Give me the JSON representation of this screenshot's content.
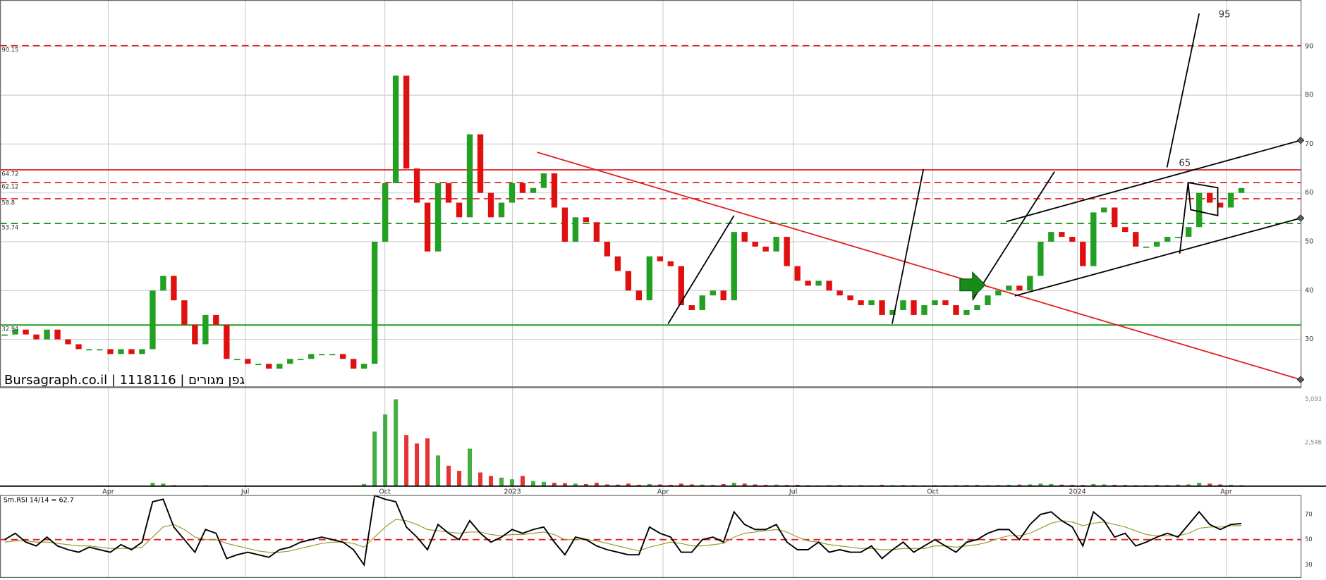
{
  "chart_data": [
    {
      "type": "candlestick",
      "title": "Bursagraph.co.il | 1118116 | גפן מגורים",
      "xlim": [
        0,
        123.04
      ],
      "xticks": [
        {
          "value": 10.24,
          "label": "Apr"
        },
        {
          "value": 23.2,
          "label": "Jul"
        },
        {
          "value": 36.4,
          "label": "Oct"
        },
        {
          "value": 48.48,
          "label": "2023"
        },
        {
          "value": 62.72,
          "label": "Apr"
        },
        {
          "value": 75.04,
          "label": "Jul"
        },
        {
          "value": 88.24,
          "label": "Oct"
        },
        {
          "value": 101.92,
          "label": "2024"
        },
        {
          "value": 116,
          "label": "Apr"
        }
      ],
      "ylim": [
        20.2,
        99.5
      ],
      "yticks": [
        30,
        40,
        50,
        60,
        70,
        80,
        90
      ],
      "grid": true,
      "up_color": "#22a022",
      "down_color": "#e01010",
      "values": [
        31,
        32,
        31,
        30,
        32,
        30,
        29,
        28,
        28,
        28,
        27,
        28,
        27,
        28,
        40,
        43,
        38,
        33,
        29,
        35,
        33,
        26,
        26,
        25,
        25,
        24,
        25,
        26,
        26,
        27,
        27,
        27,
        26,
        24,
        25,
        50,
        62,
        84,
        65,
        58,
        48,
        62,
        58,
        55,
        72,
        60,
        55,
        58,
        62,
        60,
        61,
        64,
        57,
        50,
        55,
        54,
        50,
        47,
        44,
        40,
        38,
        47,
        46,
        45,
        37,
        36,
        39,
        40,
        38,
        52,
        50,
        49,
        48,
        51,
        45,
        42,
        41,
        42,
        40,
        39,
        38,
        37,
        38,
        35,
        36,
        38,
        35,
        37,
        38,
        37,
        35,
        36,
        37,
        39,
        40,
        41,
        40,
        43,
        50,
        52,
        51,
        50,
        45,
        56,
        57,
        53,
        52,
        49,
        49,
        50,
        51,
        51,
        53,
        60,
        58,
        57,
        60,
        61
      ],
      "levels": [
        {
          "value": 90.15,
          "color": "#e02020",
          "dashed": true
        },
        {
          "value": 64.72,
          "color": "#e02020",
          "dashed": false
        },
        {
          "value": 62.12,
          "color": "#e02020",
          "dashed": true
        },
        {
          "value": 58.8,
          "color": "#e02020",
          "dashed": true
        },
        {
          "value": 53.74,
          "color": "#1a9a1a",
          "dashed": true
        },
        {
          "value": 32.94,
          "color": "#1a9a1a",
          "dashed": false
        }
      ],
      "annotations": [
        "95",
        "65"
      ]
    },
    {
      "type": "volume",
      "ylim": [
        0,
        5600
      ],
      "yticks": [
        {
          "value": 5093,
          "label": "5,093"
        },
        {
          "value": 2546,
          "label": "2,546"
        }
      ],
      "values": [
        20,
        30,
        15,
        20,
        25,
        15,
        20,
        15,
        20,
        40,
        15,
        20,
        25,
        30,
        200,
        150,
        60,
        40,
        30,
        60,
        40,
        30,
        20,
        15,
        15,
        20,
        15,
        20,
        15,
        20,
        15,
        20,
        25,
        40,
        120,
        3200,
        4200,
        5093,
        3000,
        2500,
        2800,
        1800,
        1200,
        900,
        2200,
        800,
        600,
        500,
        400,
        600,
        300,
        250,
        200,
        180,
        150,
        120,
        200,
        100,
        90,
        150,
        80,
        120,
        100,
        80,
        150,
        100,
        90,
        80,
        120,
        200,
        150,
        100,
        80,
        90,
        70,
        80,
        60,
        50,
        60,
        70,
        50,
        60,
        50,
        80,
        60,
        70,
        60,
        50,
        60,
        50,
        60,
        70,
        80,
        60,
        70,
        80,
        90,
        100,
        150,
        120,
        90,
        80,
        70,
        120,
        100,
        80,
        70,
        60,
        60,
        80,
        70,
        90,
        100,
        200,
        150,
        100,
        80,
        60
      ]
    },
    {
      "type": "rsi",
      "title": "Sm.RSI 14/14 = 62.7",
      "ylim": [
        20,
        85
      ],
      "yticks": [
        30,
        50,
        70
      ],
      "reference_line": 50,
      "reference_color": "#e02020",
      "series": [
        {
          "color": "#000000",
          "values": [
            50,
            55,
            48,
            45,
            52,
            45,
            42,
            40,
            44,
            42,
            40,
            46,
            42,
            48,
            80,
            82,
            60,
            50,
            40,
            58,
            55,
            35,
            38,
            40,
            38,
            36,
            42,
            44,
            48,
            50,
            52,
            50,
            48,
            42,
            30,
            85,
            82,
            80,
            60,
            52,
            42,
            62,
            55,
            50,
            65,
            55,
            48,
            52,
            58,
            55,
            58,
            60,
            48,
            38,
            52,
            50,
            45,
            42,
            40,
            38,
            38,
            60,
            55,
            52,
            40,
            40,
            50,
            52,
            48,
            72,
            62,
            58,
            58,
            62,
            48,
            42,
            42,
            48,
            40,
            42,
            40,
            40,
            45,
            35,
            42,
            48,
            40,
            45,
            50,
            45,
            40,
            48,
            50,
            55,
            58,
            58,
            50,
            62,
            70,
            72,
            65,
            60,
            45,
            72,
            65,
            52,
            55,
            45,
            48,
            52,
            55,
            52,
            62,
            72,
            62,
            58,
            62,
            62.7
          ]
        },
        {
          "color": "#9a9a30",
          "values": [
            48,
            49,
            49,
            48,
            48,
            47,
            46,
            45,
            45,
            44,
            43,
            43,
            43,
            44,
            52,
            60,
            62,
            58,
            52,
            50,
            50,
            47,
            45,
            43,
            41,
            40,
            40,
            41,
            43,
            45,
            47,
            48,
            48,
            47,
            44,
            52,
            60,
            66,
            65,
            62,
            58,
            57,
            56,
            55,
            56,
            56,
            54,
            53,
            54,
            54,
            55,
            56,
            54,
            50,
            50,
            50,
            49,
            47,
            45,
            43,
            41,
            44,
            46,
            48,
            47,
            45,
            45,
            46,
            47,
            52,
            55,
            56,
            57,
            58,
            56,
            52,
            49,
            48,
            46,
            45,
            44,
            43,
            43,
            42,
            42,
            43,
            43,
            43,
            45,
            45,
            44,
            45,
            46,
            48,
            51,
            53,
            53,
            55,
            59,
            63,
            65,
            64,
            61,
            63,
            64,
            62,
            60,
            57,
            54,
            53,
            53,
            53,
            55,
            59,
            60,
            60,
            61,
            61
          ]
        }
      ]
    }
  ]
}
